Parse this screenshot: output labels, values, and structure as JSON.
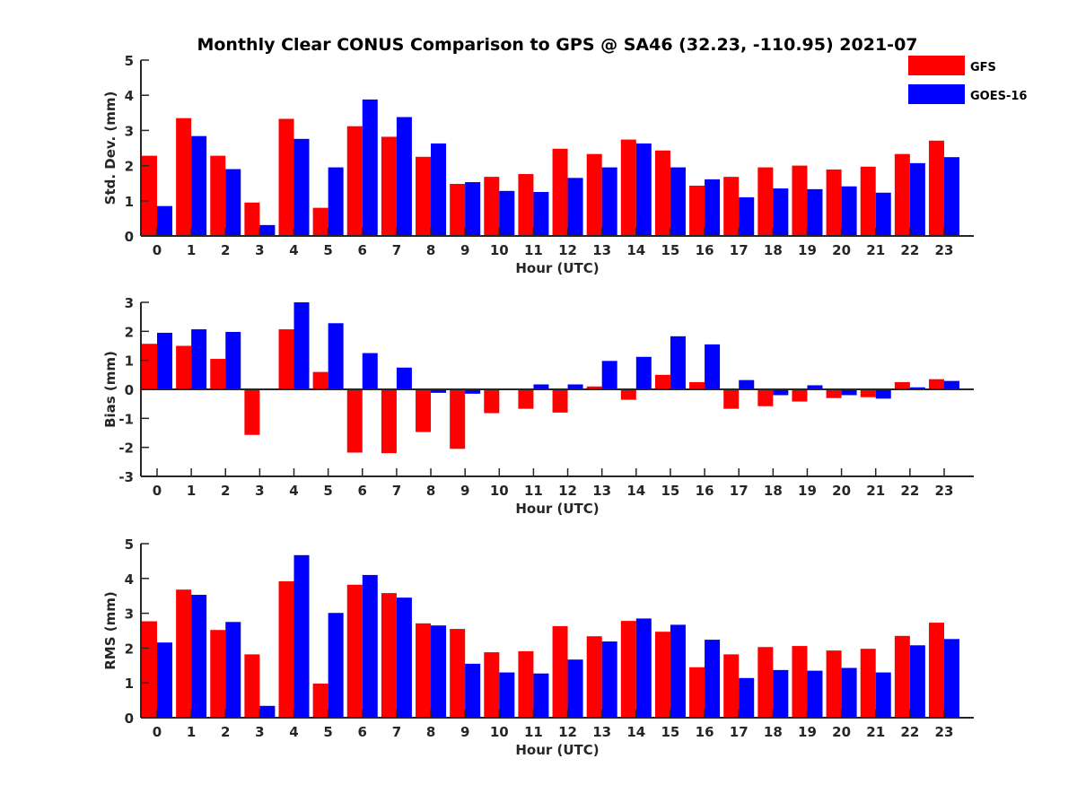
{
  "chart_data": {
    "type": "bar",
    "title": "Monthly Clear CONUS Comparison to GPS @ SA46 (32.23, -110.95) 2021-07",
    "legend": {
      "placement": "top-right",
      "entries": [
        {
          "name": "GFS",
          "color": "#ff0000"
        },
        {
          "name": "GOES-16",
          "color": "#0000ff"
        }
      ]
    },
    "categories": [
      "0",
      "1",
      "2",
      "3",
      "4",
      "5",
      "6",
      "7",
      "8",
      "9",
      "10",
      "11",
      "12",
      "13",
      "14",
      "15",
      "16",
      "17",
      "18",
      "19",
      "20",
      "21",
      "22",
      "23"
    ],
    "panels": [
      {
        "ylabel": "Std. Dev. (mm)",
        "xlabel": "Hour (UTC)",
        "ylim": [
          0,
          5
        ],
        "yticks": [
          "0",
          "1",
          "2",
          "3",
          "4",
          "5"
        ],
        "series": [
          {
            "name": "GFS",
            "values": [
              2.28,
              3.35,
              2.28,
              0.95,
              3.33,
              0.8,
              3.12,
              2.82,
              2.25,
              1.48,
              1.68,
              1.76,
              2.48,
              2.33,
              2.74,
              2.43,
              1.43,
              1.68,
              1.95,
              2.0,
              1.89,
              1.97,
              2.33,
              2.71
            ]
          },
          {
            "name": "GOES-16",
            "values": [
              0.85,
              2.84,
              1.9,
              0.31,
              2.76,
              1.95,
              3.88,
              3.38,
              2.63,
              1.53,
              1.28,
              1.25,
              1.65,
              1.95,
              2.63,
              1.95,
              1.61,
              1.1,
              1.35,
              1.33,
              1.41,
              1.23,
              2.07,
              2.24
            ]
          }
        ]
      },
      {
        "ylabel": "Bias (mm)",
        "xlabel": "Hour (UTC)",
        "ylim": [
          -3,
          3
        ],
        "yticks": [
          "-3",
          "-2",
          "-1",
          "0",
          "1",
          "2",
          "3"
        ],
        "series": [
          {
            "name": "GFS",
            "values": [
              1.57,
              1.5,
              1.05,
              -1.57,
              2.07,
              0.6,
              -2.18,
              -2.2,
              -1.47,
              -2.05,
              -0.82,
              -0.67,
              -0.8,
              0.1,
              -0.36,
              0.5,
              0.25,
              -0.67,
              -0.58,
              -0.42,
              -0.3,
              -0.27,
              0.25,
              0.35
            ]
          },
          {
            "name": "GOES-16",
            "values": [
              1.95,
              2.07,
              1.98,
              0.03,
              3.0,
              2.28,
              1.25,
              0.75,
              -0.12,
              -0.15,
              0.03,
              0.17,
              0.17,
              0.98,
              1.12,
              1.83,
              1.55,
              0.32,
              -0.2,
              0.14,
              -0.2,
              -0.32,
              0.07,
              0.29
            ]
          }
        ]
      },
      {
        "ylabel": "RMS (mm)",
        "xlabel": "Hour (UTC)",
        "ylim": [
          0,
          5
        ],
        "yticks": [
          "0",
          "1",
          "2",
          "3",
          "4",
          "5"
        ],
        "series": [
          {
            "name": "GFS",
            "values": [
              2.77,
              3.68,
              2.52,
              1.82,
              3.92,
              0.98,
              3.82,
              3.58,
              2.71,
              2.55,
              1.88,
              1.91,
              2.63,
              2.34,
              2.78,
              2.47,
              1.45,
              1.82,
              2.03,
              2.06,
              1.93,
              1.98,
              2.35,
              2.73
            ]
          },
          {
            "name": "GOES-16",
            "values": [
              2.16,
              3.53,
              2.75,
              0.34,
              4.67,
              3.01,
              4.1,
              3.45,
              2.65,
              1.55,
              1.3,
              1.27,
              1.67,
              2.19,
              2.85,
              2.67,
              2.24,
              1.14,
              1.37,
              1.35,
              1.43,
              1.3,
              2.08,
              2.26
            ]
          }
        ]
      }
    ]
  }
}
